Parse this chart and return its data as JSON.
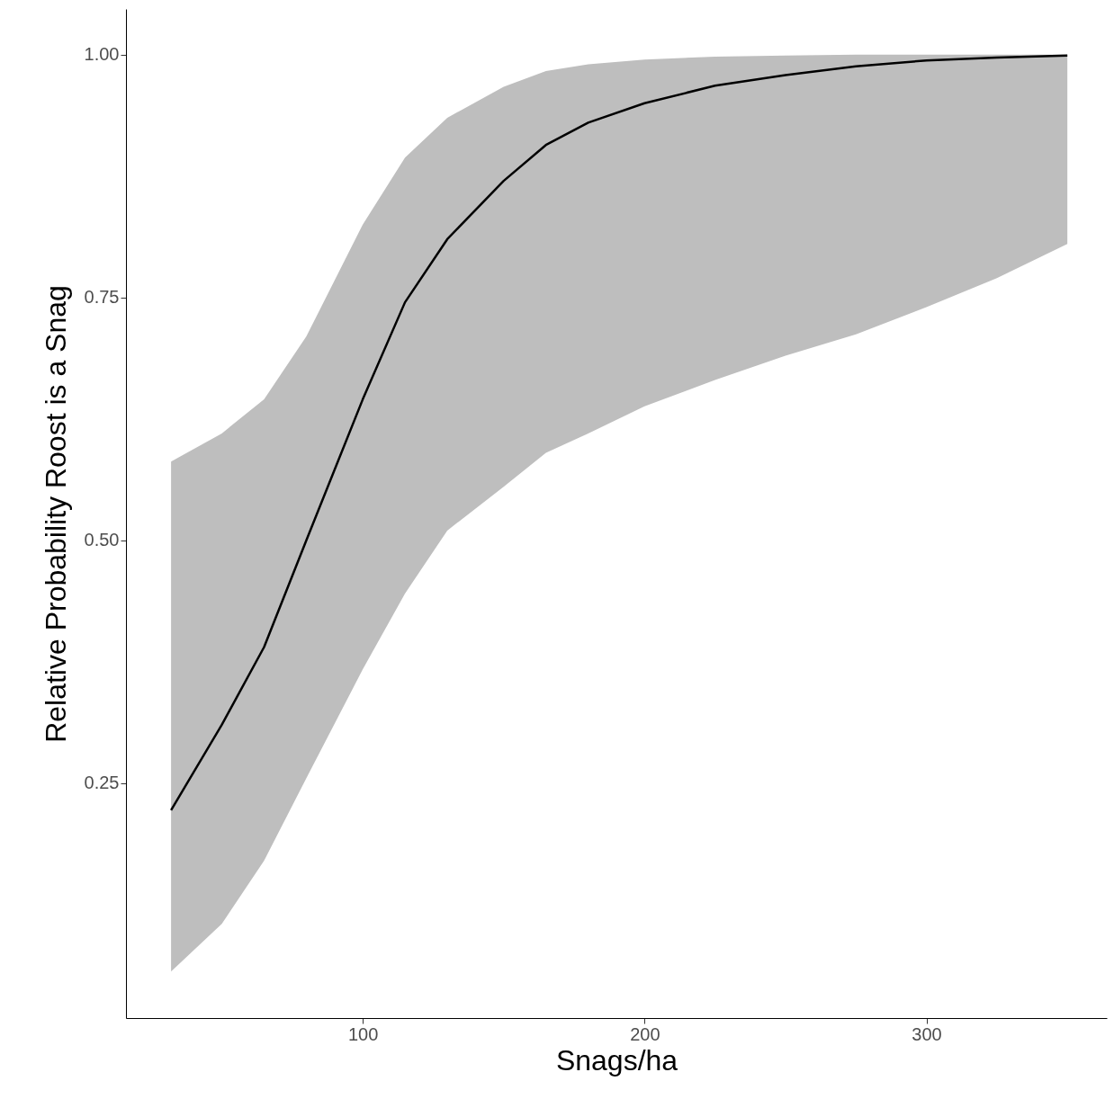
{
  "chart_data": {
    "type": "line",
    "xlabel": "Snags/ha",
    "ylabel": "Relative Probability Roost is a Snag",
    "x": [
      32,
      50,
      65,
      80,
      100,
      115,
      130,
      150,
      165,
      180,
      200,
      225,
      250,
      275,
      300,
      325,
      350
    ],
    "series": [
      {
        "color": "#000000",
        "values": [
          0.222,
          0.31,
          0.39,
          0.5,
          0.645,
          0.745,
          0.81,
          0.87,
          0.907,
          0.93,
          0.95,
          0.968,
          0.979,
          0.988,
          0.994,
          0.997,
          0.999
        ],
        "lower": [
          0.056,
          0.105,
          0.17,
          0.255,
          0.367,
          0.445,
          0.51,
          0.555,
          0.59,
          0.61,
          0.638,
          0.665,
          0.69,
          0.712,
          0.74,
          0.77,
          0.805
        ],
        "upper": [
          0.581,
          0.61,
          0.645,
          0.71,
          0.825,
          0.894,
          0.935,
          0.967,
          0.983,
          0.99,
          0.995,
          0.998,
          0.999,
          1.0,
          1.0,
          1.0,
          1.0
        ]
      }
    ],
    "xlim": [
      16,
      364
    ],
    "ylim": [
      0.008,
      1.047
    ],
    "xticks": [
      100,
      200,
      300
    ],
    "yticks": [
      {
        "value": 0.25,
        "label": "0.25"
      },
      {
        "value": 0.5,
        "label": "0.50"
      },
      {
        "value": 0.75,
        "label": "0.75"
      },
      {
        "value": 1,
        "label": "1.00"
      }
    ],
    "grid": false,
    "marker": "none",
    "line_style": "solid"
  }
}
